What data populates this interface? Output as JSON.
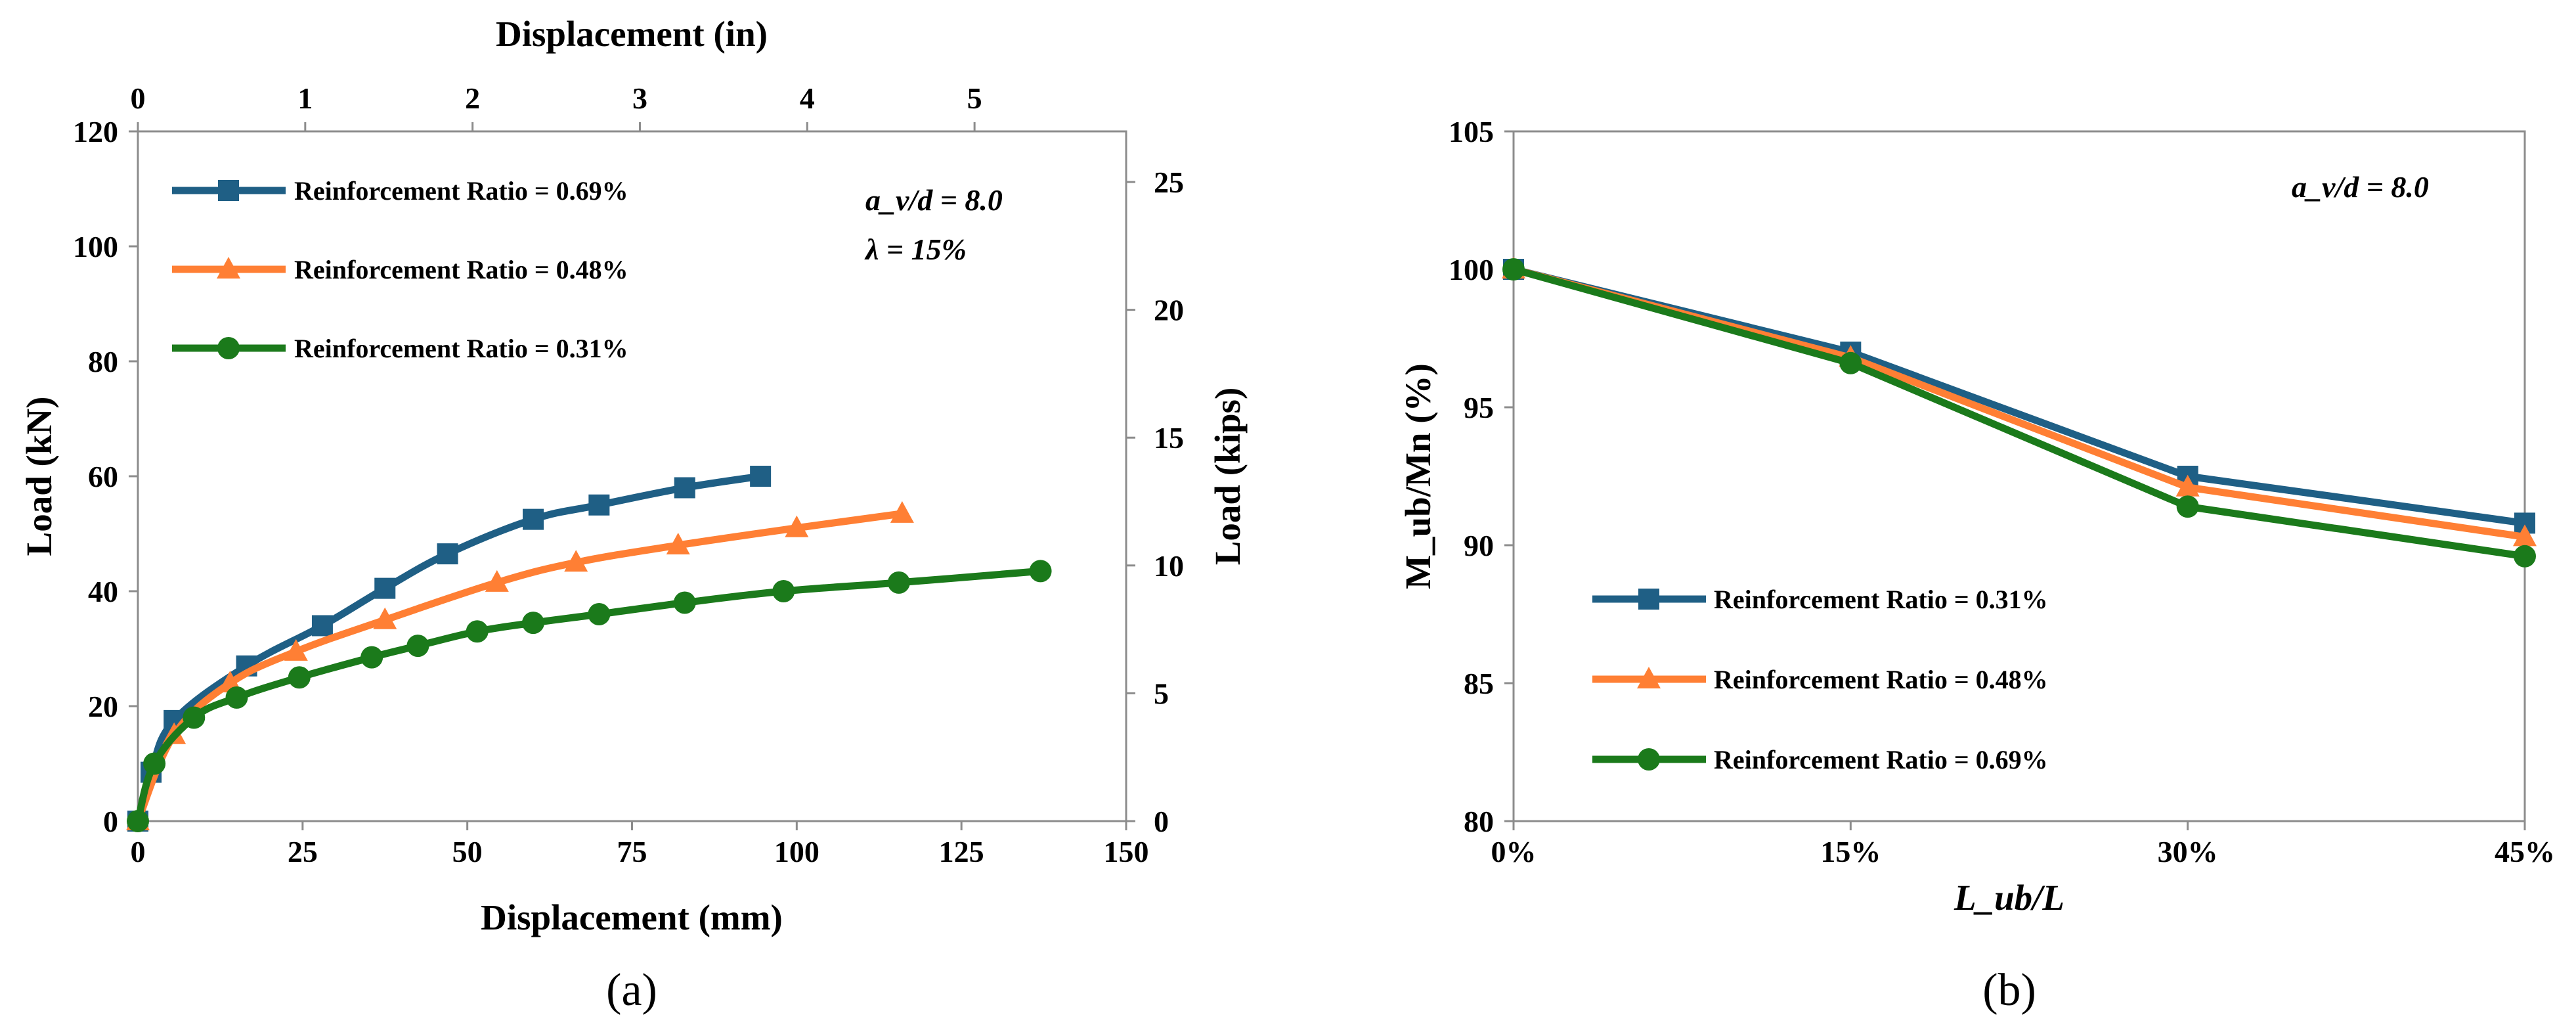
{
  "colors": {
    "blue": "#1f5f85",
    "orange": "#ff7f34",
    "green": "#1b7a1b"
  },
  "chart_data": [
    {
      "type": "line",
      "panel_label": "(a)",
      "xlabel": "Displacement (mm)",
      "ylabel": "Load (kN)",
      "x2label": "Displacement (in)",
      "y2label": "Load (kips)",
      "xlim": [
        0,
        150
      ],
      "ylim": [
        0,
        120
      ],
      "x2lim": [
        0,
        5.906
      ],
      "y2lim": [
        0,
        26.98
      ],
      "xticks": [
        "0",
        "25",
        "50",
        "75",
        "100",
        "125",
        "150"
      ],
      "yticks": [
        "0",
        "20",
        "40",
        "60",
        "80",
        "100",
        "120"
      ],
      "x2ticks": [
        "0",
        "1",
        "2",
        "3",
        "4",
        "5"
      ],
      "y2ticks": [
        "0",
        "5",
        "10",
        "15",
        "20",
        "25"
      ],
      "annotations": [
        "a_v/d = 8.0",
        "λ = 15%"
      ],
      "legend_position": "top-left",
      "series": [
        {
          "name": "Reinforcement Ratio = 0.69%",
          "color": "#1f5f85",
          "marker": "square",
          "x": [
            0,
            2,
            5.5,
            16.5,
            28,
            37.5,
            47,
            60,
            70,
            83,
            94.5
          ],
          "y": [
            0,
            8.5,
            17.5,
            27,
            34,
            40.5,
            46.5,
            52.5,
            55,
            58,
            60
          ]
        },
        {
          "name": "Reinforcement Ratio = 0.48%",
          "color": "#ff7f34",
          "marker": "triangle",
          "x": [
            0,
            5.5,
            14,
            24,
            37.5,
            54.5,
            66.5,
            82,
            100,
            116
          ],
          "y": [
            0,
            15,
            24,
            29.5,
            35,
            41.5,
            45,
            48,
            51,
            53.5
          ]
        },
        {
          "name": "Reinforcement Ratio = 0.31%",
          "color": "#1b7a1b",
          "marker": "circle",
          "x": [
            0,
            2.5,
            8.5,
            15,
            24.5,
            35.5,
            42.5,
            51.5,
            60,
            70,
            83,
            98,
            115.5,
            137
          ],
          "y": [
            0,
            10,
            18,
            21.5,
            25,
            28.5,
            30.5,
            33,
            34.5,
            36,
            38,
            40,
            41.5,
            43.5
          ]
        }
      ]
    },
    {
      "type": "line",
      "panel_label": "(b)",
      "xlabel": "L_ub/L",
      "ylabel": "M_ub/Mn (%)",
      "categories": [
        "0%",
        "15%",
        "30%",
        "45%"
      ],
      "ylim": [
        80,
        105
      ],
      "yticks": [
        "80",
        "85",
        "90",
        "95",
        "100",
        "105"
      ],
      "annotations": [
        "a_v/d = 8.0"
      ],
      "legend_position": "bottom-left",
      "series": [
        {
          "name": "Reinforcement Ratio = 0.31%",
          "color": "#1f5f85",
          "marker": "square",
          "values": [
            100,
            97.0,
            92.5,
            90.8
          ]
        },
        {
          "name": "Reinforcement Ratio = 0.48%",
          "color": "#ff7f34",
          "marker": "triangle",
          "values": [
            100,
            96.8,
            92.1,
            90.3
          ]
        },
        {
          "name": "Reinforcement Ratio = 0.69%",
          "color": "#1b7a1b",
          "marker": "circle",
          "values": [
            100,
            96.6,
            91.4,
            89.6
          ]
        }
      ]
    }
  ]
}
